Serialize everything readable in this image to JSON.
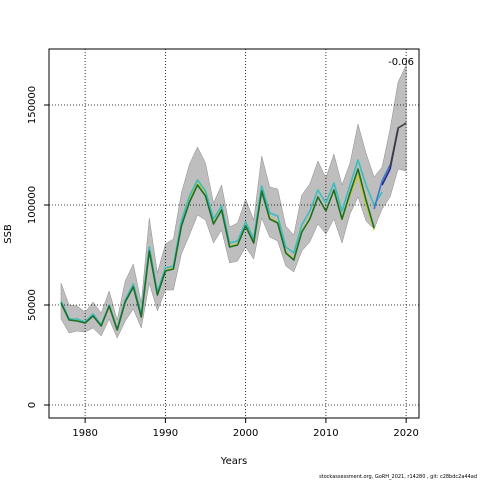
{
  "chart_data": {
    "type": "line",
    "title": "",
    "xlabel": "Years",
    "ylabel": "SSB",
    "xlim": [
      1975.5,
      2021.6
    ],
    "ylim": [
      -6500,
      178000
    ],
    "xticks": [
      1980,
      1990,
      2000,
      2010,
      2020
    ],
    "yticks": [
      0,
      50000,
      100000,
      150000
    ],
    "grid": "dotted",
    "annotation": "-0.06",
    "footer": "stockassessment.org, GoRH_2021, r14280 , git: c28bdc2a44ad",
    "colors": {
      "band": "#bebebe",
      "band_edge": "#8c8c8c",
      "peels": [
        "#c8c83c",
        "#3cbcbc",
        "#3c78c8",
        "#28288c",
        "#1e6e28",
        "#3c3c3c"
      ]
    },
    "confidence_band": {
      "x": [
        1977,
        1978,
        1979,
        1980,
        1981,
        1982,
        1983,
        1984,
        1985,
        1986,
        1987,
        1988,
        1989,
        1990,
        1991,
        1992,
        1993,
        1994,
        1995,
        1996,
        1997,
        1998,
        1999,
        2000,
        2001,
        2002,
        2003,
        2004,
        2005,
        2006,
        2007,
        2008,
        2009,
        2010,
        2011,
        2012,
        2013,
        2014,
        2015,
        2016,
        2017,
        2018,
        2019,
        2020
      ],
      "lower": [
        43000,
        36000,
        37000,
        36500,
        38500,
        34500,
        43000,
        33500,
        42000,
        48000,
        38500,
        61000,
        47000,
        57500,
        57500,
        75500,
        85000,
        95000,
        92500,
        81000,
        87500,
        71000,
        72000,
        79000,
        73000,
        93500,
        84000,
        82000,
        69500,
        66500,
        77000,
        81500,
        90500,
        85500,
        93000,
        81000,
        95500,
        104000,
        92000,
        88000,
        98000,
        104000,
        118000,
        117000
      ],
      "upper": [
        61000,
        50000,
        49500,
        46500,
        51500,
        46000,
        57000,
        42500,
        62000,
        70500,
        51000,
        93500,
        66000,
        80500,
        83000,
        106000,
        120500,
        129000,
        121000,
        101000,
        110000,
        89000,
        91000,
        103000,
        92500,
        124500,
        109000,
        108000,
        89500,
        85000,
        105000,
        110500,
        122000,
        113500,
        125500,
        110000,
        121000,
        140500,
        126000,
        114000,
        119000,
        138000,
        161500,
        170000
      ]
    },
    "series": [
      {
        "name": "",
        "color": "#c8c83c",
        "x": [
          1977,
          1978,
          1979,
          1980,
          1981,
          1982,
          1983,
          1984,
          1985,
          1986,
          1987,
          1988,
          1989,
          1990,
          1991,
          1992,
          1993,
          1994,
          1995,
          1996,
          1997,
          1998,
          1999,
          2000,
          2001,
          2002,
          2003,
          2004,
          2005,
          2006,
          2007,
          2008,
          2009,
          2010,
          2011,
          2012,
          2013,
          2014,
          2015,
          2016
        ],
        "values": [
          51500,
          42500,
          42500,
          41000,
          45000,
          39500,
          49500,
          37500,
          52000,
          59500,
          44500,
          77500,
          55500,
          67500,
          68500,
          90000,
          102500,
          111000,
          105500,
          91000,
          98000,
          79500,
          80500,
          90000,
          81500,
          107500,
          93500,
          91500,
          76500,
          73000,
          87000,
          93500,
          104000,
          97000,
          107500,
          92500,
          104500,
          115000,
          100000,
          87500
        ]
      },
      {
        "name": "",
        "color": "#3cbcbc",
        "x": [
          1977,
          1978,
          1979,
          1980,
          1981,
          1982,
          1983,
          1984,
          1985,
          1986,
          1987,
          1988,
          1989,
          1990,
          1991,
          1992,
          1993,
          1994,
          1995,
          1996,
          1997,
          1998,
          1999,
          2000,
          2001,
          2002,
          2003,
          2004,
          2005,
          2006,
          2007,
          2008,
          2009,
          2010,
          2011,
          2012,
          2013,
          2014,
          2015,
          2016,
          2017
        ],
        "values": [
          52000,
          43000,
          43000,
          41500,
          45500,
          40000,
          50000,
          38000,
          52500,
          60500,
          45500,
          79000,
          56500,
          68500,
          69500,
          92000,
          104500,
          112500,
          107000,
          93000,
          99500,
          81000,
          82000,
          91500,
          83000,
          109500,
          96000,
          94500,
          79000,
          76000,
          90000,
          97000,
          107500,
          101000,
          111000,
          97000,
          110000,
          122500,
          110000,
          100000,
          106500
        ]
      },
      {
        "name": "",
        "color": "#3c78c8",
        "x": [
          2016,
          2017,
          2018
        ],
        "values": [
          98000,
          112000,
          120000
        ]
      },
      {
        "name": "",
        "color": "#28288c",
        "x": [
          2017,
          2018,
          2019
        ],
        "values": [
          110000,
          118000,
          138000
        ]
      },
      {
        "name": "",
        "color": "#3c3c3c",
        "x": [
          2018,
          2019,
          2020
        ],
        "values": [
          119000,
          138500,
          141000
        ]
      },
      {
        "name": "",
        "color": "#1e6e28",
        "x": [
          1977,
          1978,
          1979,
          1980,
          1981,
          1982,
          1983,
          1984,
          1985,
          1986,
          1987,
          1988,
          1989,
          1990,
          1991,
          1992,
          1993,
          1994,
          1995,
          1996,
          1997,
          1998,
          1999,
          2000,
          2001,
          2002,
          2003,
          2004,
          2005,
          2006,
          2007,
          2008,
          2009,
          2010,
          2011,
          2012,
          2013,
          2014,
          2015,
          2016
        ],
        "values": [
          51000,
          42500,
          42000,
          41000,
          44500,
          39500,
          49500,
          37500,
          51500,
          59000,
          44000,
          77000,
          55000,
          67000,
          68000,
          89500,
          101500,
          110000,
          104500,
          90500,
          97500,
          79000,
          80000,
          89500,
          81000,
          107000,
          93000,
          91000,
          76000,
          72500,
          86500,
          93000,
          104000,
          97000,
          107500,
          93000,
          106000,
          118000,
          102500,
          88500
        ]
      }
    ]
  }
}
